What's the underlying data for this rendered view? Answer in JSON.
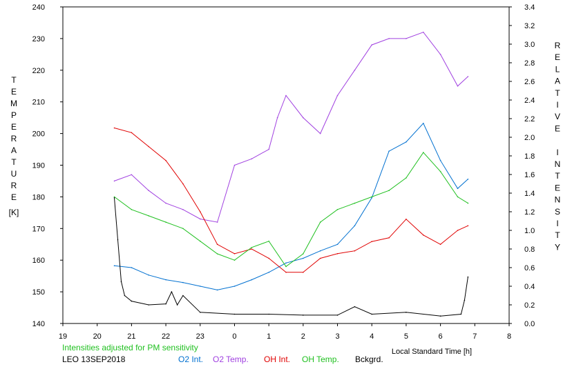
{
  "chart_data": {
    "type": "line",
    "title": "",
    "xlabel": "Local Standard Time [h]",
    "ylabel_left": "TEMPERATURE",
    "ylabel_left_unit": "[K]",
    "ylabel_right": "RELATIVE INTENSITY",
    "x_ticks": [
      "19",
      "20",
      "21",
      "22",
      "23",
      "0",
      "1",
      "2",
      "3",
      "4",
      "5",
      "6",
      "7",
      "8"
    ],
    "x_range_hours_since_19": [
      0,
      13
    ],
    "ylim_left": [
      140,
      240
    ],
    "ylim_right": [
      0.0,
      3.4
    ],
    "y_ticks_left": [
      "140",
      "150",
      "160",
      "170",
      "180",
      "190",
      "200",
      "210",
      "220",
      "230",
      "240"
    ],
    "y_ticks_right": [
      "0.0",
      "0.2",
      "0.4",
      "0.6",
      "0.8",
      "1.0",
      "1.2",
      "1.4",
      "1.6",
      "1.8",
      "2.0",
      "2.2",
      "2.4",
      "2.6",
      "2.8",
      "3.0",
      "3.2",
      "3.4"
    ],
    "note": "Intensities adjusted for PM sensitivity",
    "station": "LEO 13SEP2018",
    "series": [
      {
        "name": "O2 Int.",
        "color": "#0070d0",
        "axis": "right",
        "x": [
          "20:30",
          "21:00",
          "21:30",
          "22:00",
          "22:30",
          "23:00",
          "23:30",
          "00:00",
          "00:30",
          "01:00",
          "01:30",
          "02:00",
          "02:30",
          "03:00",
          "03:30",
          "04:00",
          "04:30",
          "05:00",
          "05:30",
          "06:00",
          "06:30",
          "06:48"
        ],
        "y": [
          0.62,
          0.6,
          0.52,
          0.47,
          0.44,
          0.4,
          0.36,
          0.4,
          0.47,
          0.55,
          0.65,
          0.7,
          0.78,
          0.85,
          1.05,
          1.35,
          1.85,
          1.95,
          2.15,
          1.75,
          1.45,
          1.55
        ]
      },
      {
        "name": "O2 Temp.",
        "color": "#a040e0",
        "axis": "left",
        "x": [
          "20:30",
          "21:00",
          "21:30",
          "22:00",
          "22:30",
          "23:00",
          "23:30",
          "00:00",
          "00:30",
          "01:00",
          "01:15",
          "01:30",
          "02:00",
          "02:30",
          "03:00",
          "03:30",
          "04:00",
          "04:30",
          "05:00",
          "05:30",
          "06:00",
          "06:30",
          "06:48"
        ],
        "y": [
          185,
          187,
          182,
          178,
          176,
          173,
          172,
          190,
          192,
          195,
          205,
          212,
          205,
          200,
          212,
          220,
          228,
          230,
          230,
          232,
          225,
          215,
          218
        ]
      },
      {
        "name": "OH Int.",
        "color": "#e00000",
        "axis": "right",
        "x": [
          "20:30",
          "21:00",
          "21:30",
          "22:00",
          "22:30",
          "23:00",
          "23:30",
          "00:00",
          "00:30",
          "01:00",
          "01:30",
          "02:00",
          "02:30",
          "03:00",
          "03:30",
          "04:00",
          "04:30",
          "05:00",
          "05:30",
          "06:00",
          "06:30",
          "06:48"
        ],
        "y": [
          2.1,
          2.05,
          1.9,
          1.75,
          1.5,
          1.2,
          0.85,
          0.75,
          0.8,
          0.7,
          0.55,
          0.55,
          0.7,
          0.75,
          0.78,
          0.88,
          0.92,
          1.12,
          0.95,
          0.85,
          1.0,
          1.05
        ]
      },
      {
        "name": "OH Temp.",
        "color": "#20c020",
        "axis": "left",
        "x": [
          "20:30",
          "21:00",
          "21:30",
          "22:00",
          "22:30",
          "23:00",
          "23:30",
          "00:00",
          "00:30",
          "01:00",
          "01:30",
          "02:00",
          "02:30",
          "03:00",
          "03:30",
          "04:00",
          "04:30",
          "05:00",
          "05:30",
          "06:00",
          "06:30",
          "06:48"
        ],
        "y": [
          180,
          176,
          174,
          172,
          170,
          166,
          162,
          160,
          164,
          166,
          158,
          162,
          172,
          176,
          178,
          180,
          182,
          186,
          194,
          188,
          180,
          178
        ]
      },
      {
        "name": "Bckgrd.",
        "color": "#000000",
        "axis": "right",
        "x": [
          "20:30",
          "20:36",
          "20:42",
          "20:48",
          "21:00",
          "21:30",
          "22:00",
          "22:10",
          "22:20",
          "22:30",
          "23:00",
          "00:00",
          "01:00",
          "02:00",
          "03:00",
          "03:30",
          "04:00",
          "05:00",
          "06:00",
          "06:36",
          "06:42",
          "06:48"
        ],
        "y": [
          1.35,
          0.9,
          0.45,
          0.3,
          0.24,
          0.2,
          0.21,
          0.34,
          0.2,
          0.3,
          0.12,
          0.1,
          0.1,
          0.09,
          0.09,
          0.18,
          0.1,
          0.12,
          0.08,
          0.1,
          0.25,
          0.5
        ]
      }
    ]
  },
  "legend": {
    "note": "Intensities adjusted for PM sensitivity",
    "station": "LEO 13SEP2018",
    "o2_int": "O2 Int.",
    "o2_temp": "O2 Temp.",
    "oh_int": "OH Int.",
    "oh_temp": "OH Temp.",
    "bckgrd": "Bckgrd."
  },
  "colors": {
    "o2_int": "#0070d0",
    "o2_temp": "#a040e0",
    "oh_int": "#e00000",
    "oh_temp": "#20c020",
    "bckgrd": "#000000",
    "note": "#20c020"
  }
}
